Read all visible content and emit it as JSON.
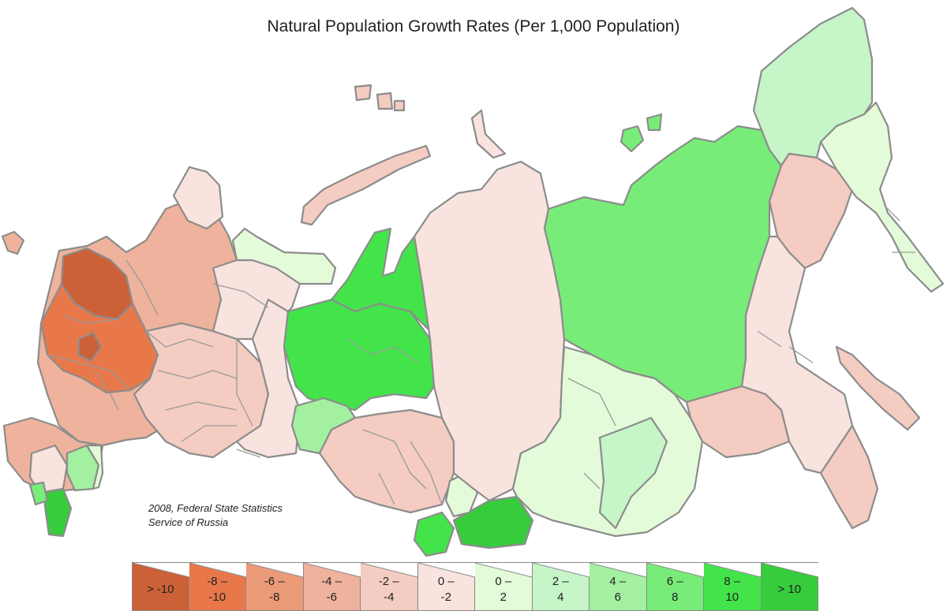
{
  "title": "Natural Population Growth Rates (Per 1,000 Population)",
  "source_line1": "2008, Federal State Statistics",
  "source_line2": "Service of Russia",
  "colors": {
    "outline": "#8c8c8c",
    "bin_lt_minus10": "#cc6138",
    "bin_minus10_minus8": "#e8784a",
    "bin_minus8_minus6": "#eb9a78",
    "bin_minus6_minus4": "#efb29c",
    "bin_minus4_minus2": "#f4ccc1",
    "bin_minus2_0": "#f8e3de",
    "bin_0_2": "#e3fbd8",
    "bin_2_4": "#c6f5c8",
    "bin_4_6": "#a3f0a0",
    "bin_6_8": "#78ec78",
    "bin_8_10": "#43e44a",
    "bin_gt10": "#36cc3c"
  },
  "legend": [
    {
      "label": "> -10",
      "color": "#cc6138"
    },
    {
      "label": "-8 –\n-10",
      "color": "#e8784a"
    },
    {
      "label": "-6 –\n-8",
      "color": "#eb9a78"
    },
    {
      "label": "-4 –\n-6",
      "color": "#efb29c"
    },
    {
      "label": "-2 –\n-4",
      "color": "#f4ccc1"
    },
    {
      "label": "0 –\n-2",
      "color": "#f8e3de"
    },
    {
      "label": "0 –\n2",
      "color": "#e3fbd8"
    },
    {
      "label": "2 –\n4",
      "color": "#c6f5c8"
    },
    {
      "label": "4 –\n6",
      "color": "#a3f0a0"
    },
    {
      "label": "6 –\n8",
      "color": "#78ec78"
    },
    {
      "label": "8 –\n10",
      "color": "#43e44a"
    },
    {
      "label": "> 10",
      "color": "#36cc3c"
    }
  ]
}
